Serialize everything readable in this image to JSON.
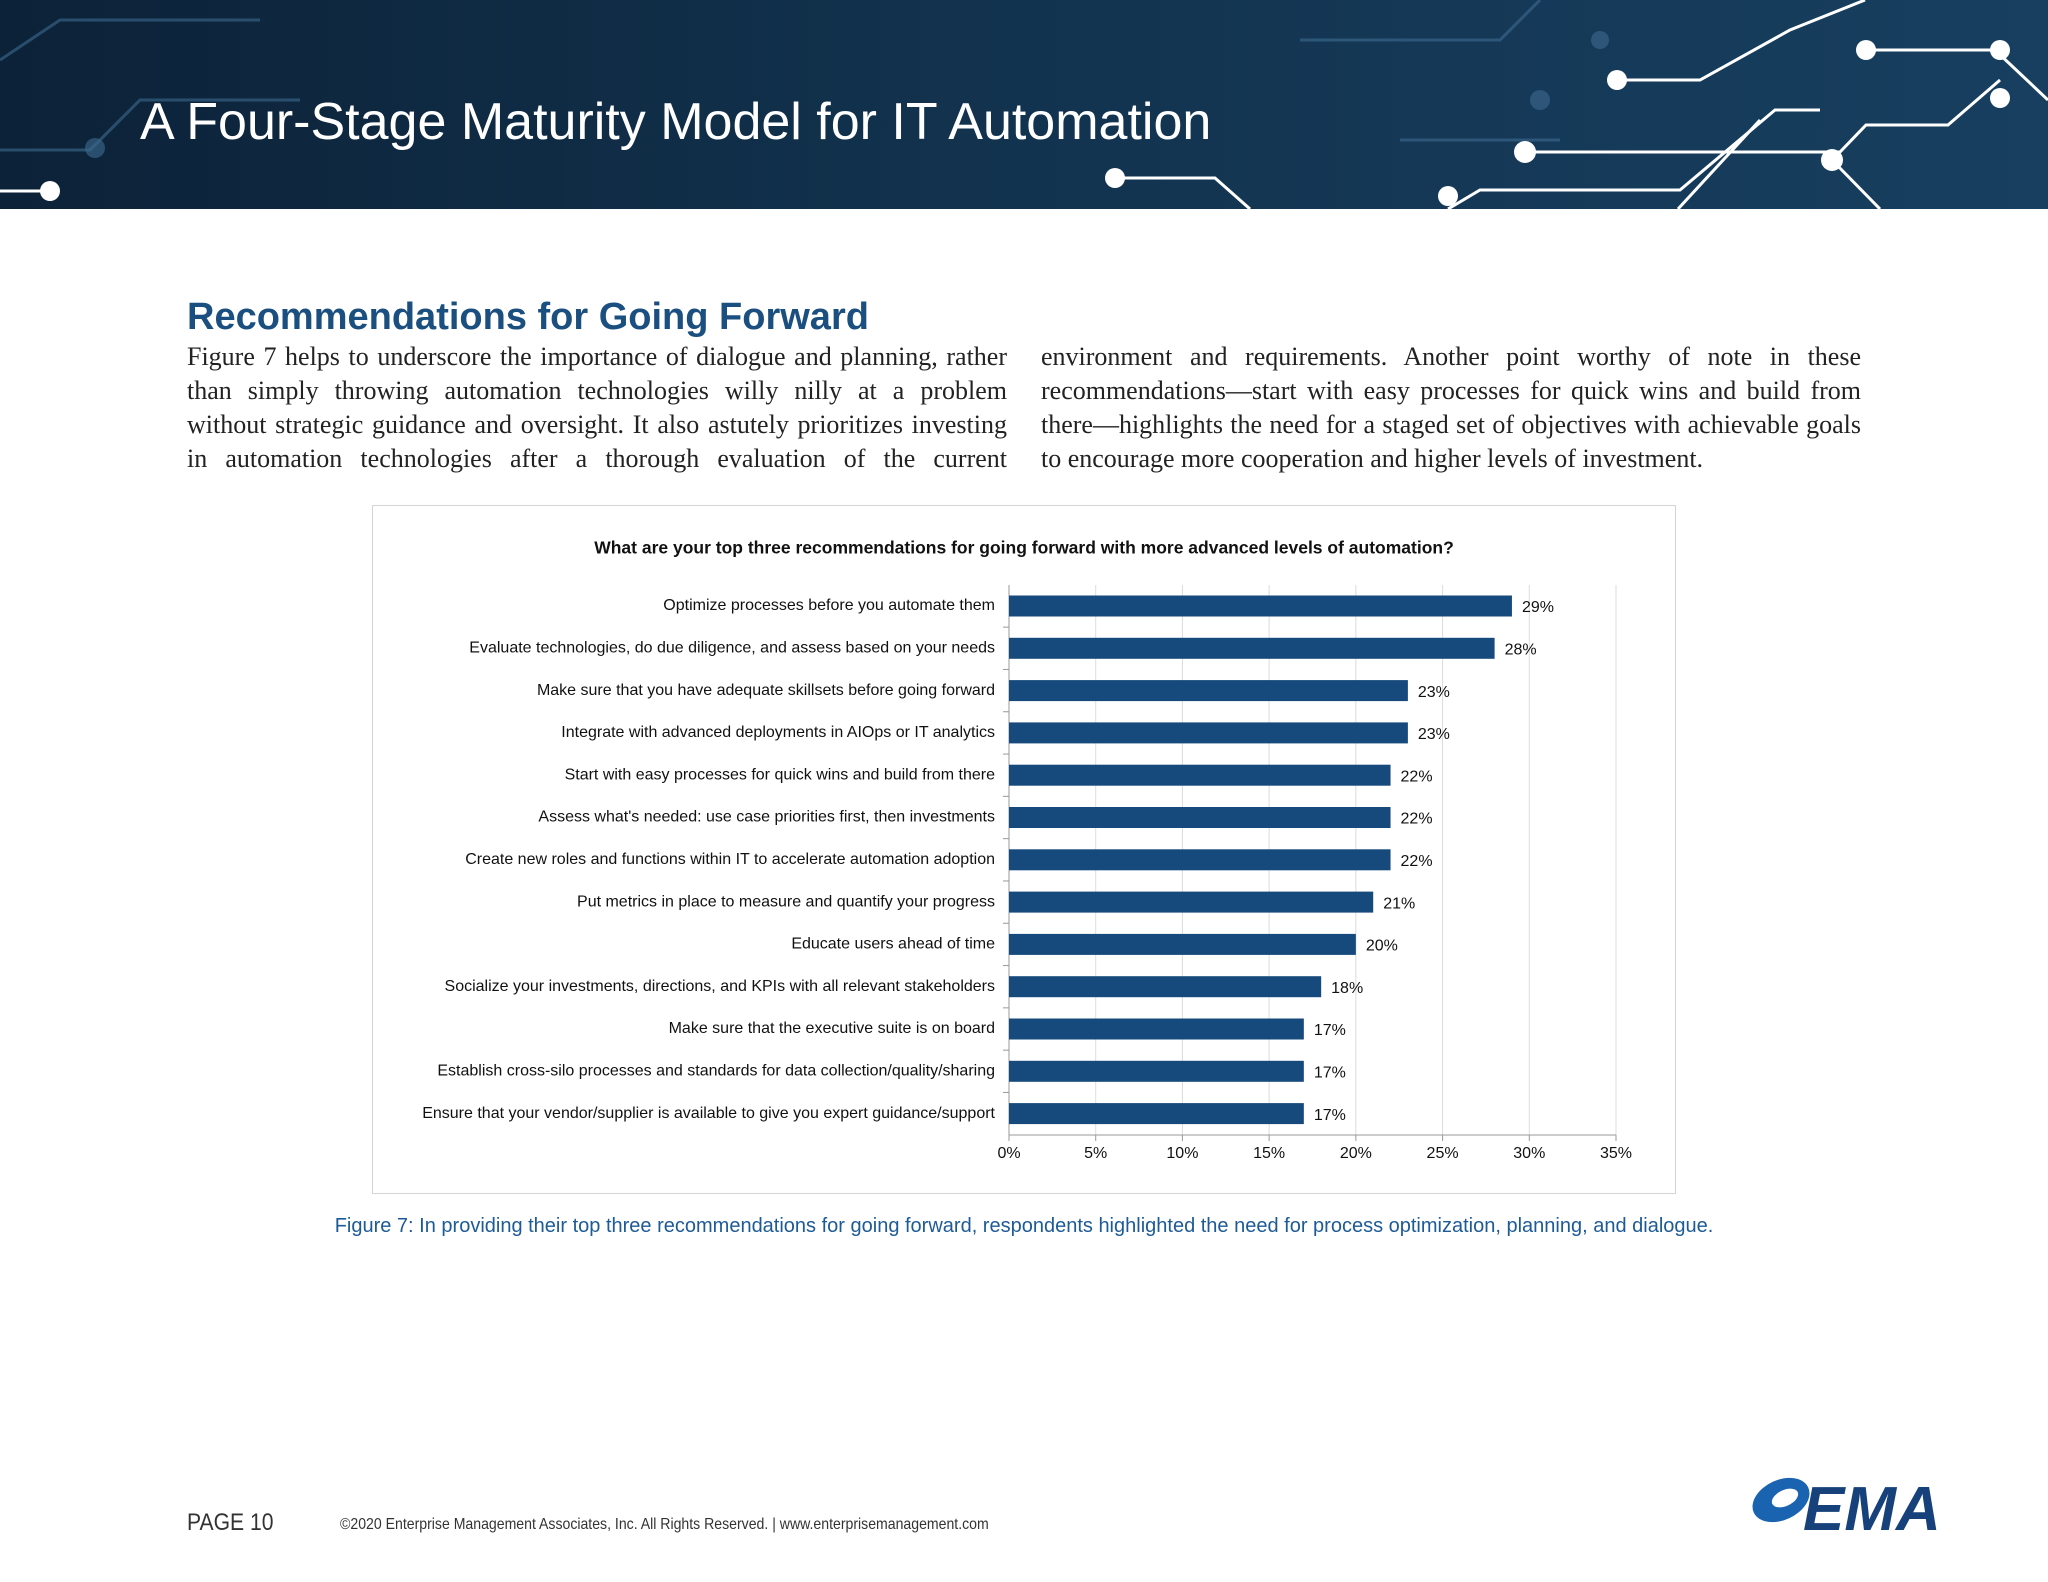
{
  "header": {
    "title": "A Four-Stage Maturity Model for IT Automation"
  },
  "section": {
    "heading": "Recommendations for Going Forward",
    "paragraph": "Figure 7 helps to underscore the importance of dialogue and planning, rather than simply throwing automation technologies willy nilly at a problem without strategic guidance and oversight. It also astutely prioritizes investing in automation technologies after a thorough evaluation of the current environment and requirements. Another point worthy of note in these recommendations—start with easy processes for quick wins and build from there—highlights the need for a staged set of objectives with achievable goals to encourage more cooperation and higher levels of investment."
  },
  "chart_data": {
    "type": "bar",
    "title": "What are your top three recommendations for going forward with more advanced levels of automation?",
    "categories": [
      "Optimize processes before you automate them",
      "Evaluate technologies, do due diligence, and assess based on your needs",
      "Make sure that you have adequate skillsets before going forward",
      "Integrate with advanced deployments in AIOps or IT analytics",
      "Start with easy processes for quick wins and build from there",
      "Assess what's needed: use case priorities first, then investments",
      "Create new roles and functions within IT to accelerate automation adoption",
      "Put metrics in place to measure and quantify your progress",
      "Educate users ahead of time",
      "Socialize your investments, directions, and KPIs with all relevant stakeholders",
      "Make sure that the executive suite is on board",
      "Establish cross-silo processes and standards for data collection/quality/sharing",
      "Ensure that your vendor/supplier is available to give you expert guidance/support"
    ],
    "values": [
      29,
      28,
      23,
      23,
      22,
      22,
      22,
      21,
      20,
      18,
      17,
      17,
      17
    ],
    "value_labels": [
      "29%",
      "28%",
      "23%",
      "23%",
      "22%",
      "22%",
      "22%",
      "21%",
      "20%",
      "18%",
      "17%",
      "17%",
      "17%"
    ],
    "color": "#174a7c",
    "xlim": [
      0,
      35
    ],
    "xticks": [
      {
        "value": 0,
        "label": "0%"
      },
      {
        "value": 5,
        "label": "5%"
      },
      {
        "value": 10,
        "label": "10%"
      },
      {
        "value": 15,
        "label": "15%"
      },
      {
        "value": 20,
        "label": "20%"
      },
      {
        "value": 25,
        "label": "25%"
      },
      {
        "value": 30,
        "label": "30%"
      },
      {
        "value": 35,
        "label": "35%"
      }
    ],
    "grid": true
  },
  "caption": "Figure 7: In providing their top three recommendations for going forward, respondents highlighted the need for process optimization, planning, and dialogue.",
  "footer": {
    "page": "PAGE 10",
    "copyright": "©2020 Enterprise Management Associates, Inc. All Rights Reserved. | www.enterprisemanagement.com",
    "logo": "EMA"
  }
}
